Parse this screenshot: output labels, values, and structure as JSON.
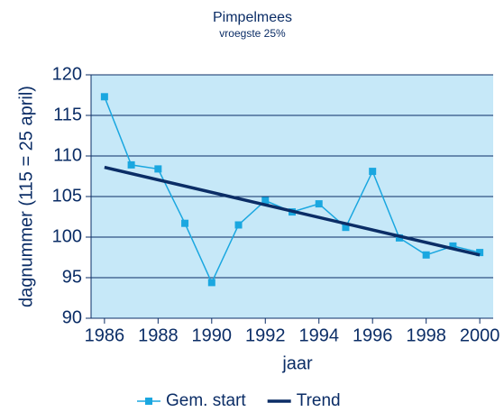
{
  "chart_data": {
    "type": "line",
    "title": "Pimpelmees",
    "subtitle": "vroegste 25%",
    "xlabel": "jaar",
    "ylabel": "dagnummer (115 = 25 april)",
    "series": [
      {
        "name": "Gem. start",
        "color": "#1aa7e0",
        "marker": "square",
        "x": [
          1986,
          1987,
          1988,
          1989,
          1990,
          1991,
          1992,
          1993,
          1994,
          1995,
          1996,
          1997,
          1998,
          1999,
          2000
        ],
        "values": [
          117.3,
          108.9,
          108.4,
          101.7,
          94.4,
          101.5,
          104.5,
          103.1,
          104.1,
          101.2,
          108.1,
          99.9,
          97.8,
          98.9,
          98.1
        ]
      },
      {
        "name": "Trend",
        "color": "#0b2d66",
        "marker": "none",
        "x": [
          1986,
          2000
        ],
        "values": [
          108.6,
          97.8
        ]
      }
    ],
    "xlim": [
      1985.5,
      2000.5
    ],
    "xticks": [
      1986,
      1988,
      1990,
      1992,
      1994,
      1996,
      1998,
      2000
    ],
    "ylim": [
      90,
      120
    ],
    "yticks": [
      90,
      95,
      100,
      105,
      110,
      115,
      120
    ],
    "grid": true,
    "plot_background": "#c6e8f8",
    "legend": "bottom"
  }
}
